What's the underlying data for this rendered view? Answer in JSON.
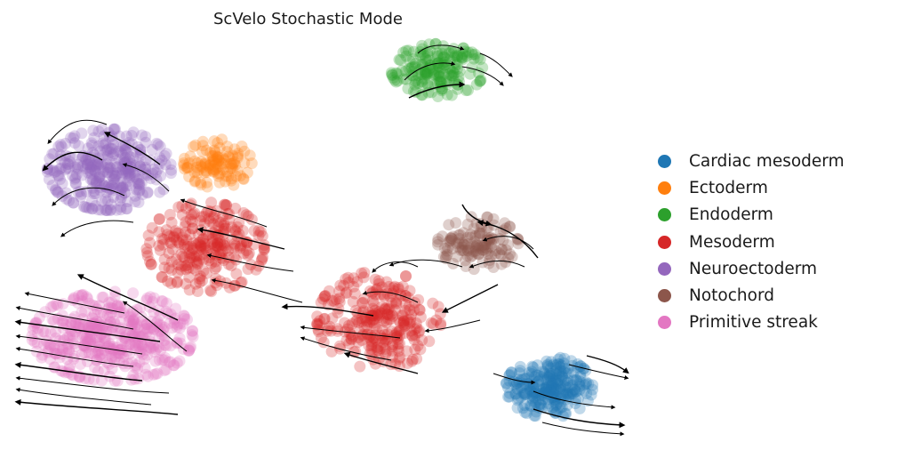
{
  "chart_data": {
    "type": "scatter",
    "title": "ScVelo Stochastic Mode",
    "xlabel": "",
    "ylabel": "",
    "axes_visible": false,
    "grid": false,
    "legend_position": "right",
    "overlay": "velocity streamlines with arrowheads",
    "xlim": [
      0,
      100
    ],
    "ylim": [
      0,
      100
    ],
    "series": [
      {
        "name": "Cardiac mesoderm",
        "color": "#1f77b4",
        "clusters": [
          {
            "cx": 86.5,
            "cy": 13.5,
            "rx": 7,
            "ry": 7.5,
            "n": 260
          }
        ]
      },
      {
        "name": "Ectoderm",
        "color": "#ff7f0e",
        "clusters": [
          {
            "cx": 33,
            "cy": 68.5,
            "rx": 5.5,
            "ry": 6,
            "n": 110
          }
        ]
      },
      {
        "name": "Endoderm",
        "color": "#2ca02c",
        "clusters": [
          {
            "cx": 68.5,
            "cy": 91.5,
            "rx": 7.5,
            "ry": 6.5,
            "n": 180
          }
        ]
      },
      {
        "name": "Mesoderm",
        "color": "#d62728",
        "clusters": [
          {
            "cx": 31,
            "cy": 48,
            "rx": 9.5,
            "ry": 11,
            "n": 260
          },
          {
            "cx": 59,
            "cy": 30,
            "rx": 10,
            "ry": 12,
            "n": 280
          }
        ]
      },
      {
        "name": "Neuroectoderm",
        "color": "#9467bd",
        "clusters": [
          {
            "cx": 15.5,
            "cy": 67,
            "rx": 10,
            "ry": 10,
            "n": 330
          }
        ]
      },
      {
        "name": "Notochord",
        "color": "#8c564b",
        "clusters": [
          {
            "cx": 75,
            "cy": 49,
            "rx": 6.5,
            "ry": 6.5,
            "n": 130
          }
        ]
      },
      {
        "name": "Primitive streak",
        "color": "#e377c2",
        "clusters": [
          {
            "cx": 16,
            "cy": 26,
            "rx": 13,
            "ry": 11,
            "n": 440
          }
        ]
      }
    ]
  }
}
